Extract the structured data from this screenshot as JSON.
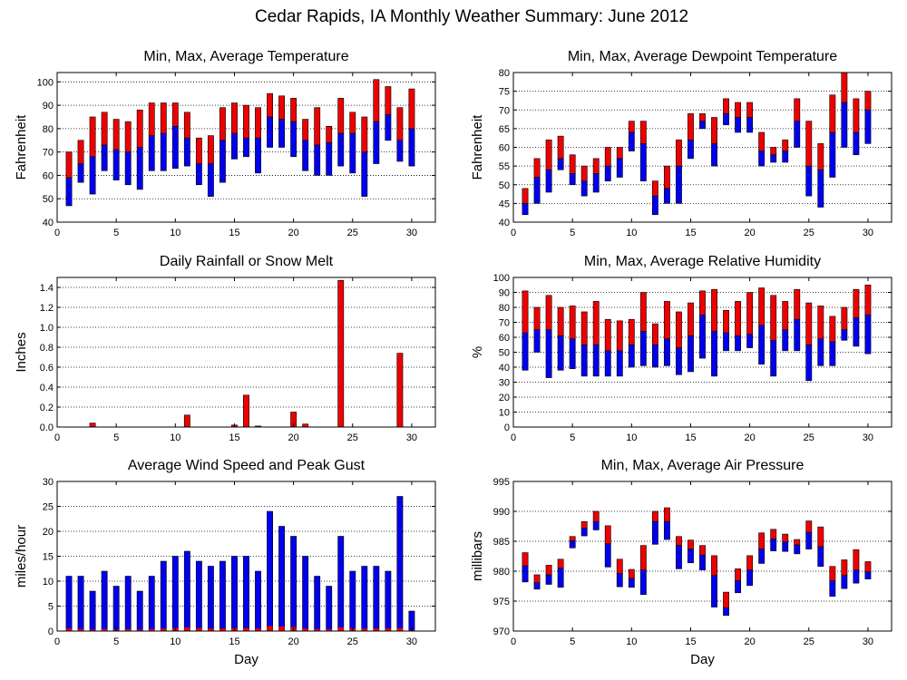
{
  "figure_title": "Cedar Rapids, IA Monthly Weather Summary: June 2012",
  "colors": {
    "upper": "#ee0000",
    "lower": "#0000ee",
    "frame": "#000000"
  },
  "chart_data": [
    {
      "id": "temperature",
      "type": "bar",
      "style": "range",
      "title": "Min, Max, Average Temperature",
      "xlabel": "",
      "ylabel": "Fahrenheit",
      "xlim": [
        0,
        32
      ],
      "ylim": [
        40,
        104
      ],
      "xticks": [
        0,
        5,
        10,
        15,
        20,
        25,
        30
      ],
      "yticks": [
        40,
        50,
        60,
        70,
        80,
        90,
        100
      ],
      "grid": true,
      "x": [
        1,
        2,
        3,
        4,
        5,
        6,
        7,
        8,
        9,
        10,
        11,
        12,
        13,
        14,
        15,
        16,
        17,
        18,
        19,
        20,
        21,
        22,
        23,
        24,
        25,
        26,
        27,
        28,
        29,
        30
      ],
      "series": [
        {
          "name": "Min",
          "values": [
            47,
            57,
            52,
            62,
            58,
            56,
            54,
            62,
            62,
            63,
            64,
            56,
            51,
            57,
            67,
            68,
            61,
            72,
            72,
            68,
            62,
            60,
            60,
            64,
            61,
            51,
            65,
            75,
            66,
            64
          ]
        },
        {
          "name": "Avg",
          "values": [
            59,
            65,
            68,
            73,
            71,
            70,
            72,
            77,
            78,
            81,
            76,
            65,
            65,
            75,
            78,
            76,
            76,
            85,
            84,
            83,
            75,
            73,
            74,
            78,
            78,
            70,
            83,
            86,
            75,
            80
          ]
        },
        {
          "name": "Max",
          "values": [
            70,
            75,
            85,
            87,
            84,
            83,
            88,
            91,
            91,
            91,
            87,
            76,
            77,
            89,
            91,
            90,
            89,
            95,
            94,
            93,
            84,
            89,
            81,
            93,
            87,
            85,
            101,
            98,
            89,
            97
          ]
        }
      ]
    },
    {
      "id": "dewpoint",
      "type": "bar",
      "style": "range",
      "title": "Min, Max, Average Dewpoint Temperature",
      "xlabel": "",
      "ylabel": "Fahrenheit",
      "xlim": [
        0,
        32
      ],
      "ylim": [
        40,
        80
      ],
      "xticks": [
        0,
        5,
        10,
        15,
        20,
        25,
        30
      ],
      "yticks": [
        40,
        45,
        50,
        55,
        60,
        65,
        70,
        75,
        80
      ],
      "grid": true,
      "x": [
        1,
        2,
        3,
        4,
        5,
        6,
        7,
        8,
        9,
        10,
        11,
        12,
        13,
        14,
        15,
        16,
        17,
        18,
        19,
        20,
        21,
        22,
        23,
        24,
        25,
        26,
        27,
        28,
        29,
        30
      ],
      "series": [
        {
          "name": "Min",
          "values": [
            42,
            45,
            48,
            54,
            50,
            47,
            48,
            51,
            52,
            59,
            51,
            42,
            45,
            45,
            57,
            65,
            55,
            66,
            64,
            64,
            55,
            56,
            56,
            60,
            47,
            44,
            52,
            60,
            58,
            61
          ]
        },
        {
          "name": "Avg",
          "values": [
            45,
            52,
            54,
            57,
            53,
            51,
            53,
            55,
            57,
            64,
            61,
            47,
            49,
            55,
            62,
            67,
            61,
            69,
            68,
            68,
            59,
            58,
            59,
            67,
            55,
            54,
            64,
            72,
            64,
            70
          ]
        },
        {
          "name": "Max",
          "values": [
            49,
            57,
            62,
            63,
            58,
            55,
            57,
            60,
            60,
            67,
            67,
            51,
            55,
            62,
            69,
            69,
            68,
            73,
            72,
            72,
            64,
            60,
            62,
            73,
            67,
            61,
            74,
            80,
            73,
            75
          ]
        }
      ]
    },
    {
      "id": "rainfall",
      "type": "bar",
      "title": "Daily Rainfall or Snow Melt",
      "xlabel": "",
      "ylabel": "Inches",
      "xlim": [
        0,
        32
      ],
      "ylim": [
        0,
        1.5
      ],
      "xticks": [
        0,
        5,
        10,
        15,
        20,
        25,
        30
      ],
      "yticks": [
        0,
        0.2,
        0.4,
        0.6,
        0.8,
        1.0,
        1.2,
        1.4
      ],
      "ytick_labels": [
        "0.0",
        "0.2",
        "0.4",
        "0.6",
        "0.8",
        "1.0",
        "1.2",
        "1.4"
      ],
      "grid": true,
      "x": [
        1,
        2,
        3,
        4,
        5,
        6,
        7,
        8,
        9,
        10,
        11,
        12,
        13,
        14,
        15,
        16,
        17,
        18,
        19,
        20,
        21,
        22,
        23,
        24,
        25,
        26,
        27,
        28,
        29,
        30
      ],
      "series": [
        {
          "name": "Precip",
          "values": [
            0,
            0,
            0.04,
            0,
            0,
            0,
            0,
            0,
            0,
            0,
            0.12,
            0,
            0,
            0,
            0.02,
            0.32,
            0.01,
            0,
            0,
            0.15,
            0.03,
            0,
            0,
            1.47,
            0,
            0,
            0,
            0,
            0.74,
            0
          ]
        }
      ]
    },
    {
      "id": "humidity",
      "type": "bar",
      "style": "range",
      "title": "Min, Max, Average Relative Humidity",
      "xlabel": "",
      "ylabel": "%",
      "xlim": [
        0,
        32
      ],
      "ylim": [
        0,
        100
      ],
      "xticks": [
        0,
        5,
        10,
        15,
        20,
        25,
        30
      ],
      "yticks": [
        0,
        10,
        20,
        30,
        40,
        50,
        60,
        70,
        80,
        90,
        100
      ],
      "grid": true,
      "x": [
        1,
        2,
        3,
        4,
        5,
        6,
        7,
        8,
        9,
        10,
        11,
        12,
        13,
        14,
        15,
        16,
        17,
        18,
        19,
        20,
        21,
        22,
        23,
        24,
        25,
        26,
        27,
        28,
        29,
        30
      ],
      "series": [
        {
          "name": "Min",
          "values": [
            38,
            50,
            33,
            38,
            39,
            34,
            34,
            34,
            34,
            40,
            41,
            40,
            41,
            35,
            37,
            46,
            34,
            51,
            51,
            53,
            42,
            34,
            51,
            51,
            31,
            41,
            41,
            58,
            54,
            49
          ]
        },
        {
          "name": "Avg",
          "values": [
            63,
            65,
            65,
            61,
            59,
            55,
            55,
            51,
            51,
            55,
            64,
            55,
            59,
            53,
            61,
            75,
            64,
            63,
            61,
            62,
            68,
            58,
            65,
            72,
            55,
            59,
            57,
            65,
            73,
            75
          ]
        },
        {
          "name": "Max",
          "values": [
            91,
            80,
            88,
            80,
            81,
            77,
            84,
            72,
            71,
            72,
            90,
            69,
            84,
            77,
            83,
            91,
            92,
            78,
            84,
            90,
            93,
            88,
            84,
            92,
            83,
            81,
            74,
            80,
            92,
            95
          ]
        }
      ]
    },
    {
      "id": "wind",
      "type": "bar",
      "title": "Average Wind Speed and Peak Gust",
      "xlabel": "Day",
      "ylabel": "miles/hour",
      "xlim": [
        0,
        32
      ],
      "ylim": [
        0,
        30
      ],
      "xticks": [
        0,
        5,
        10,
        15,
        20,
        25,
        30
      ],
      "yticks": [
        0,
        5,
        10,
        15,
        20,
        25,
        30
      ],
      "grid": true,
      "x": [
        1,
        2,
        3,
        4,
        5,
        6,
        7,
        8,
        9,
        10,
        11,
        12,
        13,
        14,
        15,
        16,
        17,
        18,
        19,
        20,
        21,
        22,
        23,
        24,
        25,
        26,
        27,
        28,
        29,
        30
      ],
      "series": [
        {
          "name": "Avg",
          "values": [
            0.5,
            0.4,
            0.3,
            0.4,
            0.3,
            0.4,
            0.3,
            0.4,
            0.5,
            0.6,
            0.7,
            0.6,
            0.5,
            0.5,
            0.6,
            0.6,
            0.5,
            1.0,
            0.9,
            0.8,
            0.5,
            0.4,
            0.4,
            0.7,
            0.5,
            0.5,
            0.5,
            0.5,
            0.6,
            0.2
          ]
        },
        {
          "name": "Gust",
          "values": [
            11,
            11,
            8,
            12,
            9,
            11,
            8,
            11,
            14,
            15,
            16,
            14,
            13,
            14,
            15,
            15,
            12,
            24,
            21,
            19,
            15,
            11,
            9,
            19,
            12,
            13,
            13,
            12,
            27,
            4
          ]
        }
      ]
    },
    {
      "id": "pressure",
      "type": "bar",
      "style": "range",
      "title": "Min, Max, Average Air Pressure",
      "xlabel": "Day",
      "ylabel": "millibars",
      "xlim": [
        0,
        32
      ],
      "ylim": [
        970,
        995
      ],
      "xticks": [
        0,
        5,
        10,
        15,
        20,
        25,
        30
      ],
      "yticks": [
        970,
        975,
        980,
        985,
        990,
        995
      ],
      "grid": true,
      "x": [
        1,
        2,
        3,
        4,
        5,
        6,
        7,
        8,
        9,
        10,
        11,
        12,
        13,
        14,
        15,
        16,
        17,
        18,
        19,
        20,
        21,
        22,
        23,
        24,
        25,
        26,
        27,
        28,
        29,
        30
      ],
      "series": [
        {
          "name": "Min",
          "values": [
            978.2,
            977.0,
            977.8,
            977.3,
            983.9,
            985.9,
            986.9,
            980.7,
            977.4,
            977.3,
            976.1,
            984.5,
            985.3,
            980.4,
            981.4,
            980.2,
            974.0,
            972.6,
            976.4,
            977.6,
            981.3,
            983.4,
            983.3,
            982.9,
            983.7,
            980.8,
            975.8,
            977.1,
            978.0,
            978.7
          ]
        },
        {
          "name": "Avg",
          "values": [
            980.9,
            978.1,
            979.4,
            980.5,
            985.1,
            987.2,
            988.3,
            984.6,
            979.6,
            978.8,
            980.2,
            988.3,
            988.3,
            984.3,
            983.7,
            982.7,
            979.3,
            973.9,
            978.4,
            980.2,
            983.7,
            985.4,
            984.9,
            984.4,
            986.5,
            984.1,
            978.4,
            979.3,
            980.2,
            979.9
          ]
        },
        {
          "name": "Max",
          "values": [
            983.1,
            979.4,
            981.0,
            982.0,
            985.8,
            988.3,
            990.0,
            987.6,
            982.0,
            980.3,
            984.3,
            990.0,
            990.6,
            985.8,
            985.2,
            984.3,
            982.6,
            976.5,
            980.4,
            982.6,
            986.4,
            987.0,
            986.2,
            985.3,
            988.4,
            987.4,
            980.8,
            981.9,
            983.6,
            981.6
          ]
        }
      ]
    }
  ]
}
